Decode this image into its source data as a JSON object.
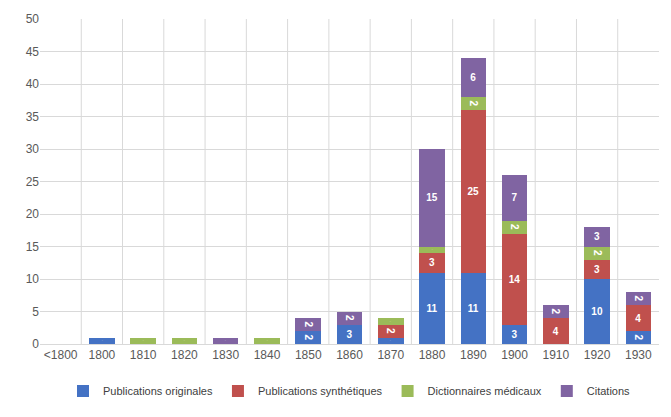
{
  "chart_data": {
    "type": "bar",
    "stacked": true,
    "data_labels": true,
    "grid": true,
    "legend": "bottom",
    "categories": [
      "<1800",
      "1800",
      "1810",
      "1820",
      "1830",
      "1840",
      "1850",
      "1860",
      "1870",
      "1880",
      "1890",
      "1900",
      "1910",
      "1920",
      "1930"
    ],
    "series": [
      {
        "name": "Publications originales",
        "color": "#4472c4",
        "values": [
          0,
          1,
          0,
          0,
          0,
          0,
          2,
          3,
          1,
          11,
          11,
          3,
          0,
          10,
          2
        ]
      },
      {
        "name": "Publications synthétiques",
        "color": "#c0504d",
        "values": [
          0,
          0,
          0,
          0,
          0,
          0,
          0,
          0,
          2,
          3,
          25,
          14,
          4,
          3,
          4
        ]
      },
      {
        "name": "Dictionnaires médicaux",
        "color": "#9bbb59",
        "values": [
          0,
          0,
          1,
          1,
          0,
          1,
          0,
          0,
          1,
          1,
          2,
          2,
          0,
          2,
          0
        ]
      },
      {
        "name": "Citations",
        "color": "#8064a2",
        "values": [
          0,
          0,
          0,
          0,
          1,
          0,
          2,
          2,
          0,
          15,
          6,
          7,
          2,
          3,
          2
        ]
      }
    ],
    "ylim": [
      0,
      50
    ],
    "yticks": [
      0,
      5,
      10,
      15,
      20,
      25,
      30,
      35,
      40,
      45,
      50
    ]
  }
}
